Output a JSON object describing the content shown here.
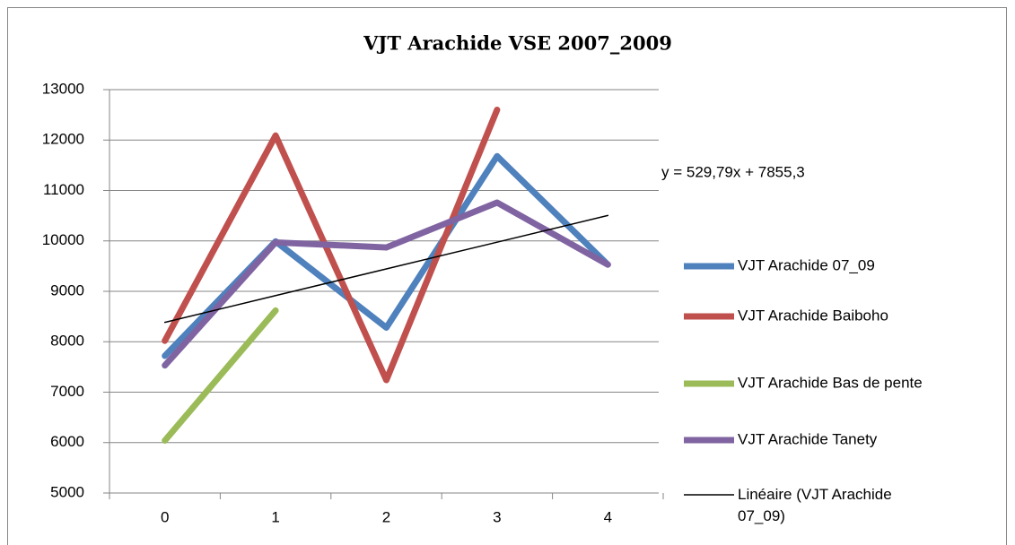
{
  "chart_data": {
    "type": "line",
    "title": "VJT Arachide VSE 2007_2009",
    "categories": [
      "0",
      "1",
      "2",
      "3",
      "4"
    ],
    "series": [
      {
        "name": "VJT Arachide 07_09",
        "color": "#4f81bd",
        "values": [
          7720,
          9990,
          8280,
          11680,
          9530
        ]
      },
      {
        "name": "VJT Arachide Baiboho",
        "color": "#c0504d",
        "values": [
          8020,
          12090,
          7240,
          12600,
          null
        ]
      },
      {
        "name": "VJT Arachide Bas de pente",
        "color": "#9bbb59",
        "values": [
          6040,
          8620,
          null,
          null,
          null
        ]
      },
      {
        "name": "VJT Arachide Tanety",
        "color": "#8064a2",
        "values": [
          7530,
          9970,
          9870,
          10760,
          9530
        ]
      }
    ],
    "trendline": {
      "name": "Linéaire (VJT Arachide 07_09)",
      "equation": "y = 529,79x + 7855,3",
      "color": "#000000",
      "values": [
        8385.1,
        8914.9,
        9444.7,
        9974.5,
        10504.3
      ]
    },
    "ylim": [
      5000,
      13000
    ],
    "yticks": [
      5000,
      6000,
      7000,
      8000,
      9000,
      10000,
      11000,
      12000,
      13000
    ],
    "grid": true,
    "legend": "right"
  }
}
